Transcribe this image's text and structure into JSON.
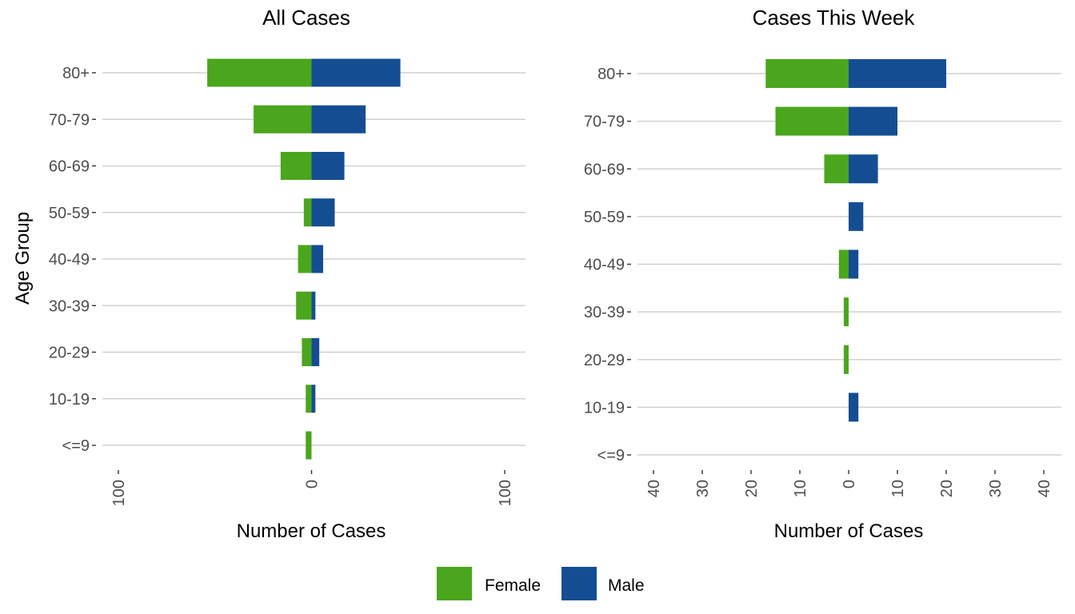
{
  "colors": {
    "female": "#4aa61d",
    "male": "#154d93"
  },
  "legend": {
    "items": [
      "Female",
      "Male"
    ]
  },
  "chart_data": [
    {
      "type": "bar",
      "orientation": "horizontal",
      "stacking": "diverging",
      "title": "All Cases",
      "xlabel": "Number of Cases",
      "ylabel": "Age Group",
      "xlim": [
        -100,
        100
      ],
      "xticks": [
        -100,
        0,
        100
      ],
      "xtick_labels": [
        "100",
        "0",
        "100"
      ],
      "categories": [
        "<=9",
        "10-19",
        "20-29",
        "30-39",
        "40-49",
        "50-59",
        "60-69",
        "70-79",
        "80+"
      ],
      "series": [
        {
          "name": "Female",
          "values": [
            3,
            3,
            5,
            8,
            7,
            4,
            16,
            30,
            54
          ]
        },
        {
          "name": "Male",
          "values": [
            0,
            2,
            4,
            2,
            6,
            12,
            17,
            28,
            46
          ]
        }
      ],
      "grid": true,
      "legend_position": "bottom"
    },
    {
      "type": "bar",
      "orientation": "horizontal",
      "stacking": "diverging",
      "title": "Cases This Week",
      "xlabel": "Number of Cases",
      "ylabel": "",
      "xlim": [
        -40,
        40
      ],
      "xticks": [
        -40,
        -30,
        -20,
        -10,
        0,
        10,
        20,
        30,
        40
      ],
      "xtick_labels": [
        "40",
        "30",
        "20",
        "10",
        "0",
        "10",
        "20",
        "30",
        "40"
      ],
      "categories": [
        "<=9",
        "10-19",
        "20-29",
        "30-39",
        "40-49",
        "50-59",
        "60-69",
        "70-79",
        "80+"
      ],
      "series": [
        {
          "name": "Female",
          "values": [
            0,
            0,
            1,
            1,
            2,
            0,
            5,
            15,
            17
          ]
        },
        {
          "name": "Male",
          "values": [
            0,
            2,
            0,
            0,
            2,
            3,
            6,
            10,
            20
          ]
        }
      ],
      "grid": true,
      "legend_position": "bottom"
    }
  ]
}
